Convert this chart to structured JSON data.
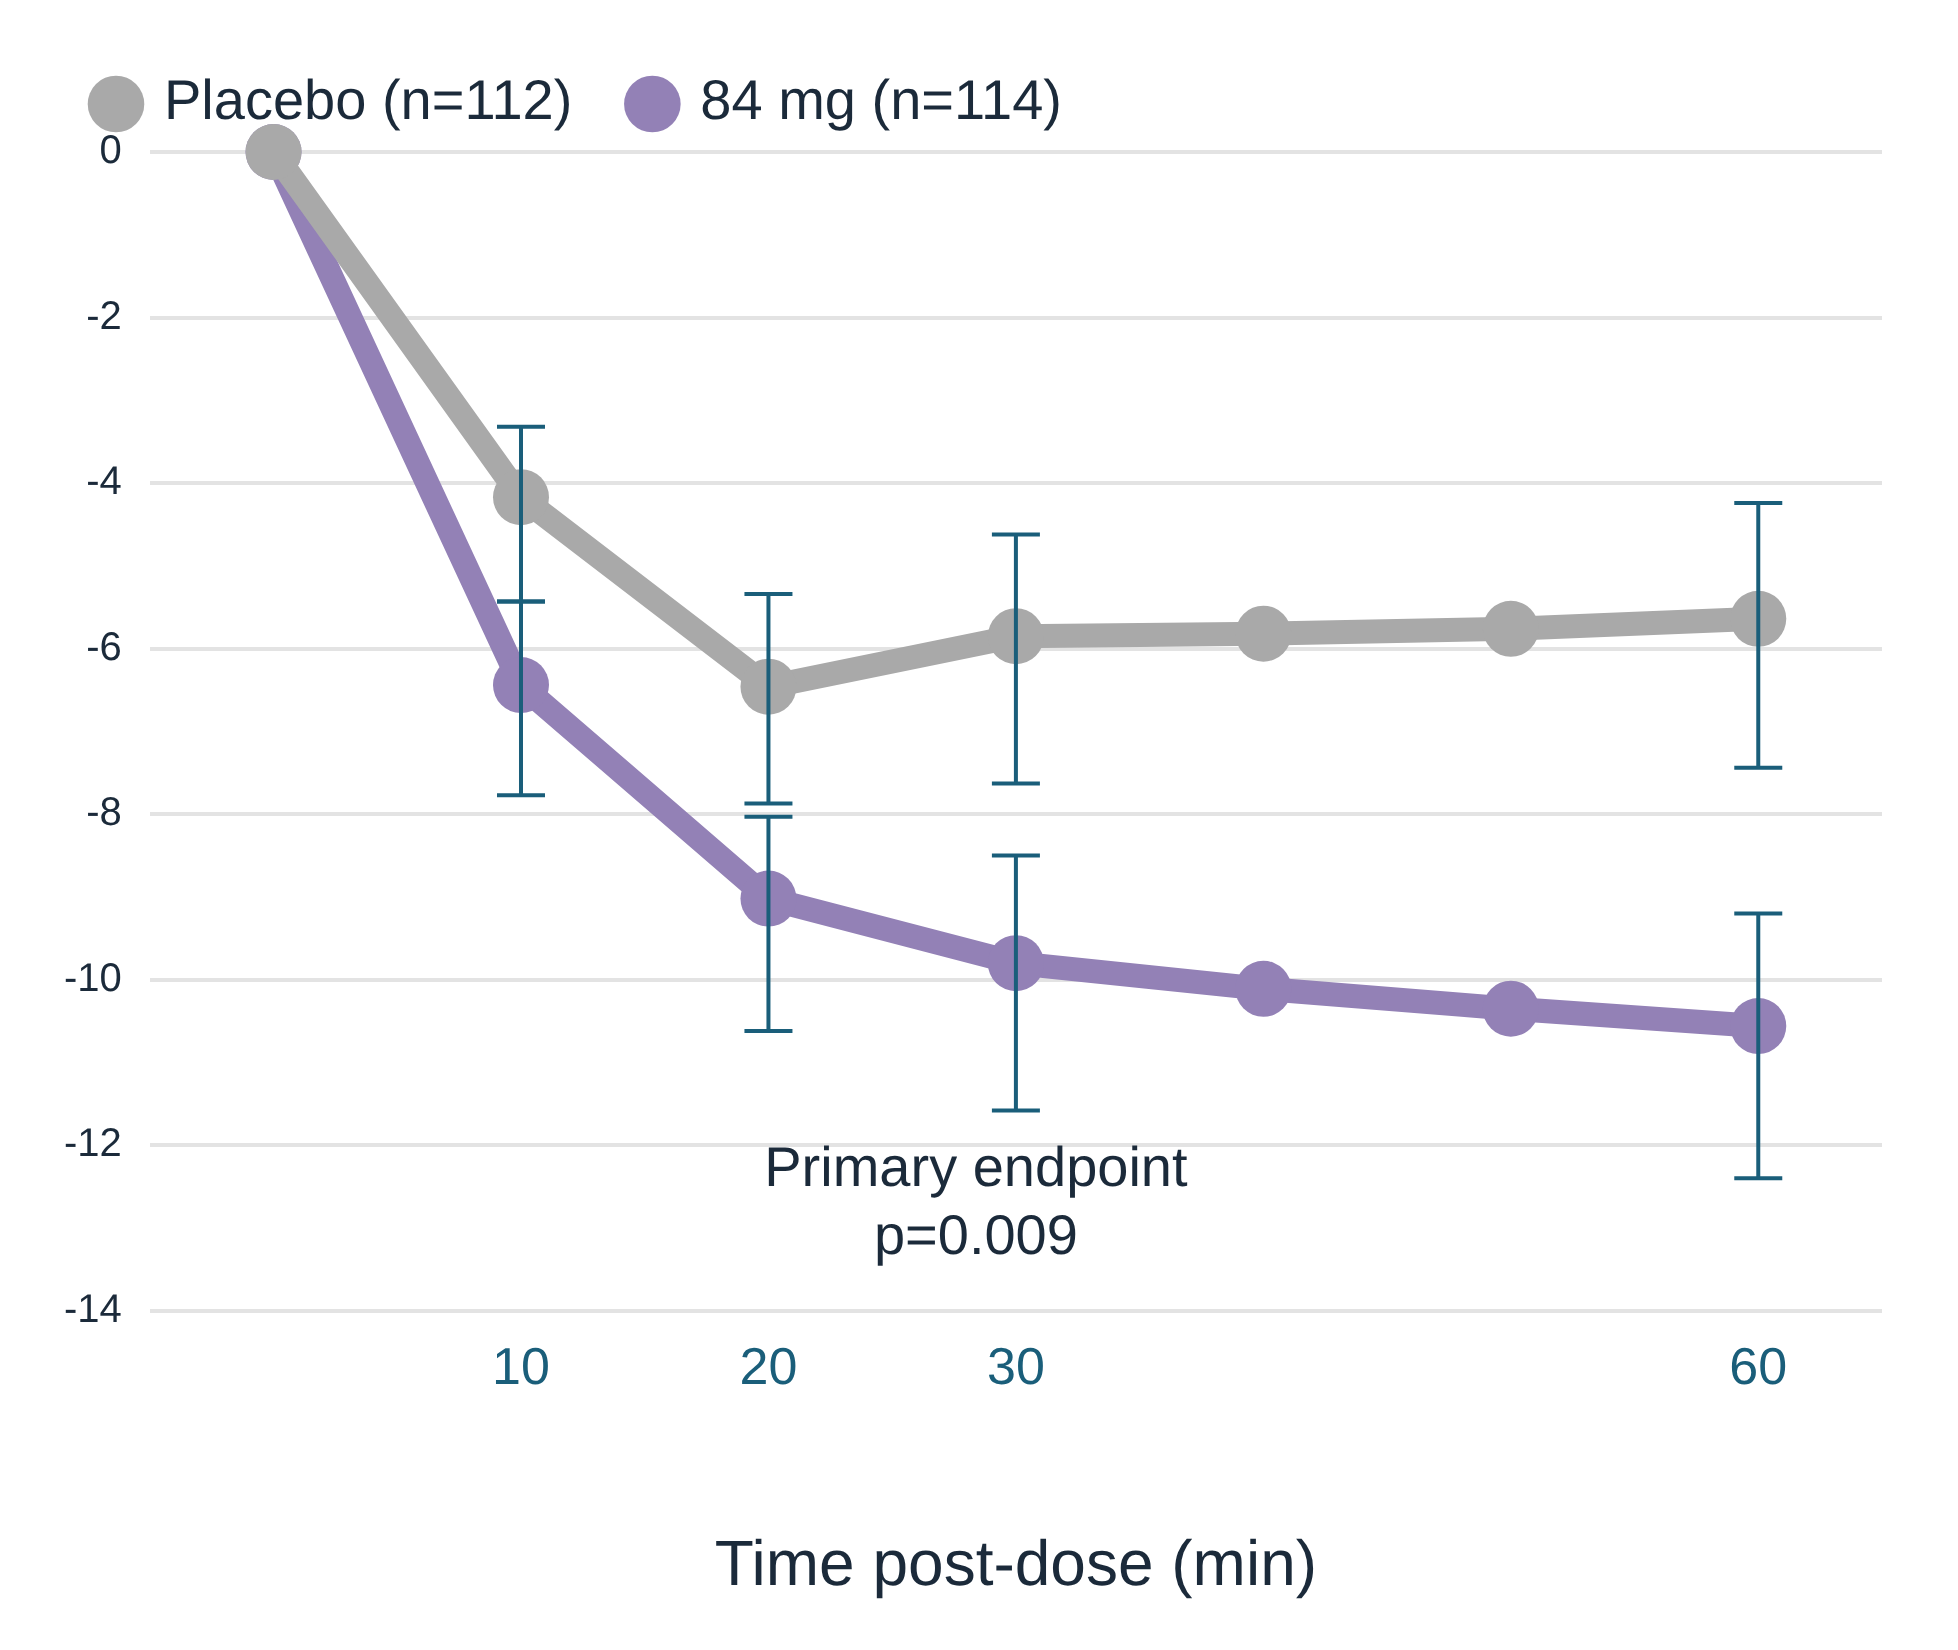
{
  "chart_data": {
    "type": "line",
    "xlabel": "Time post-dose (min)",
    "categories": [
      null,
      "10",
      "20",
      "30",
      null,
      null,
      "60"
    ],
    "series": [
      {
        "name": "Placebo (n=112)",
        "color": "#a9a9a9",
        "values": [
          0,
          -4.17,
          -6.46,
          -5.85,
          -5.82,
          -5.76,
          -5.64
        ],
        "errors": [
          null,
          [
            -5.43,
            -3.32
          ],
          [
            -7.87,
            -5.34
          ],
          [
            -7.63,
            -4.62
          ],
          null,
          null,
          [
            -7.44,
            -4.24
          ]
        ]
      },
      {
        "name": "84 mg (n=114)",
        "color": "#9381b6",
        "values": [
          0,
          -6.44,
          -9.02,
          -9.8,
          -10.11,
          -10.35,
          -10.56
        ],
        "errors": [
          null,
          [
            -7.77,
            -5.43
          ],
          [
            -10.62,
            -8.03
          ],
          [
            -11.58,
            -8.5
          ],
          null,
          null,
          [
            -12.4,
            -9.2
          ]
        ]
      }
    ],
    "ylim": [
      -14,
      0
    ],
    "yticks": [
      0,
      -2,
      -4,
      -6,
      -8,
      -10,
      -12,
      -14
    ],
    "grid": "y",
    "legend": "top",
    "marker": "circle",
    "line_style": "solid",
    "annotations": [
      "Primary endpoint\np=0.009"
    ]
  }
}
